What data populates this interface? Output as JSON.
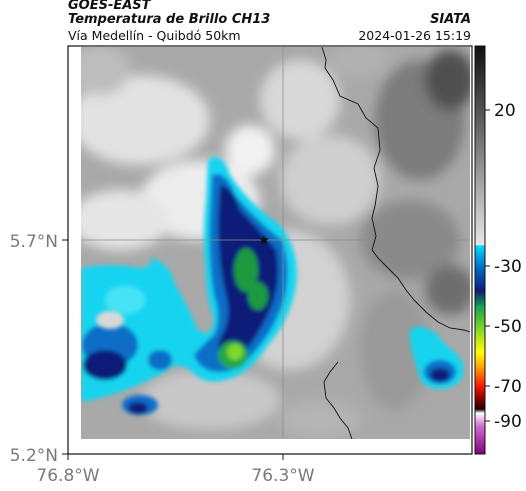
{
  "header": {
    "line1": "GOES-EAST",
    "line2": "Temperatura de Brillo CH13",
    "subtitle": "Vía Medellín - Quibdó 50km",
    "brand": "SIATA",
    "timestamp": "2024-01-26 15:19"
  },
  "map_axes": {
    "lat_labels": [
      "5.7°N",
      "5.2°N"
    ],
    "lon_labels": [
      "76.8°W",
      "76.3°W"
    ],
    "marker": "star-icon"
  },
  "colorbar": {
    "tick_labels": [
      "20",
      "-30",
      "-50",
      "-70",
      "-90"
    ],
    "gradient_colors": [
      "#101010",
      "#6e6e6e",
      "#b8b8b8",
      "#e6e6e6",
      "#00d8ff",
      "#0060c0",
      "#0a1e78",
      "#19a64a",
      "#8fdc1e",
      "#ffff00",
      "#ff9a00",
      "#ff2000",
      "#a00000",
      "#1a0000",
      "#ffffff",
      "#d070d0",
      "#800080"
    ]
  }
}
